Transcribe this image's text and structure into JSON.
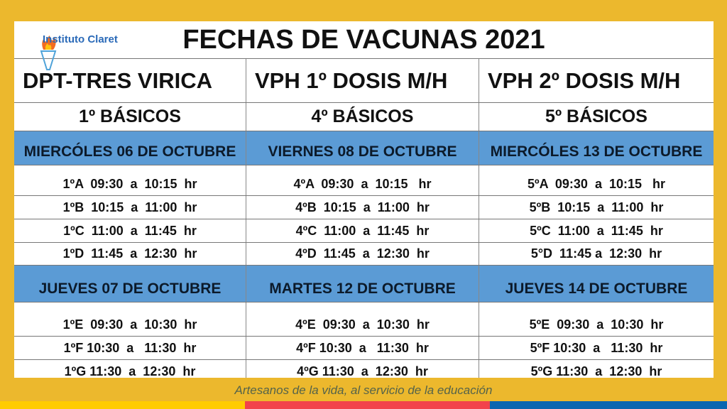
{
  "logo": {
    "name": "Instituto Claret"
  },
  "title": "FECHAS DE VACUNAS 2021",
  "columns": [
    {
      "vaccine": "DPT-TRES VIRICA",
      "grade": "1º BÁSICOS",
      "day1": "MIERCÓLES 06 DE OCTUBRE",
      "slots1": [
        "1ºA  09:30  a  10:15  hr",
        "1ºB  10:15  a  11:00  hr",
        "1ºC  11:00  a  11:45  hr",
        "1ºD  11:45  a  12:30  hr"
      ],
      "day2": "JUEVES 07 DE OCTUBRE",
      "slots2": [
        "1ºE  09:30  a  10:30  hr",
        "1ºF 10:30  a   11:30  hr",
        "1ºG 11:30  a  12:30  hr"
      ]
    },
    {
      "vaccine": "VPH 1º DOSIS M/H",
      "grade": "4º BÁSICOS",
      "day1": "VIERNES 08 DE OCTUBRE",
      "slots1": [
        "4ºA  09:30  a  10:15   hr",
        "4ºB  10:15  a  11:00  hr",
        "4ºC  11:00  a  11:45  hr",
        "4ºD  11:45  a  12:30  hr"
      ],
      "day2": "MARTES 12 DE OCTUBRE",
      "slots2": [
        "4ºE  09:30  a  10:30  hr",
        "4ºF 10:30  a   11:30  hr",
        "4ºG 11:30  a  12:30  hr"
      ]
    },
    {
      "vaccine": "VPH 2º DOSIS M/H",
      "grade": "5º BÁSICOS",
      "day1": "MIERCÓLES 13 DE OCTUBRE",
      "slots1": [
        "5ºA  09:30  a  10:15   hr",
        "5ºB  10:15  a  11:00  hr",
        "5ºC  11:00  a  11:45  hr",
        "5°D  11:45 a  12:30  hr"
      ],
      "day2": "JUEVES 14 DE OCTUBRE",
      "slots2": [
        "5ºE  09:30  a  10:30  hr",
        "5ºF 10:30  a   11:30  hr",
        "5ºG 11:30  a  12:30  hr"
      ]
    }
  ],
  "footer": "Artesanos de la vida, al servicio de la educación",
  "colors": {
    "background": "#ECB82D",
    "day_header": "#5B9BD5",
    "stripes": [
      "#FFCC00",
      "#F2434B",
      "#0A66B0"
    ]
  }
}
